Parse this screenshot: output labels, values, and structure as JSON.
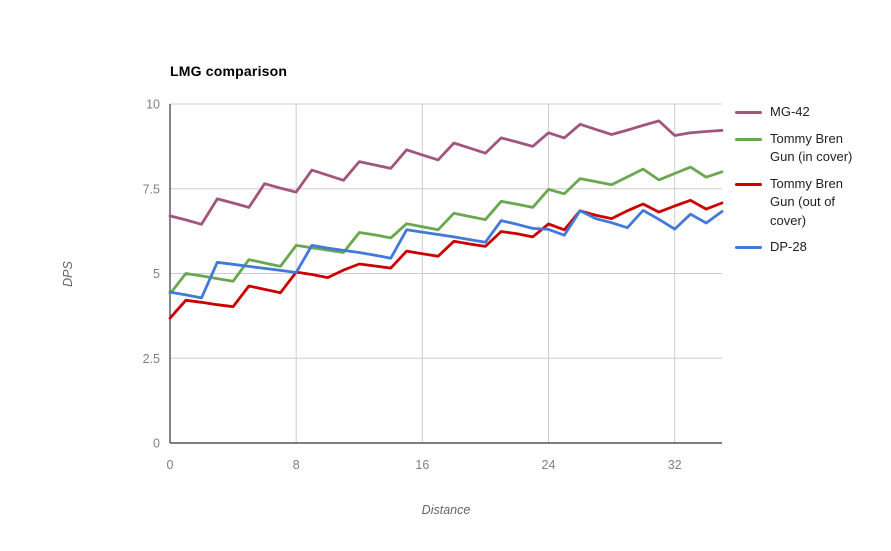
{
  "title": "LMG comparison",
  "chart_data": {
    "type": "line",
    "title": "LMG comparison",
    "xlabel": "Distance",
    "ylabel": "DPS",
    "xlim": [
      0,
      35
    ],
    "ylim": [
      0,
      10
    ],
    "x_ticks": [
      "0",
      "8",
      "16",
      "24",
      "32"
    ],
    "x_tick_values": [
      0,
      8,
      16,
      24,
      32
    ],
    "y_ticks": [
      "0",
      "2.5",
      "5",
      "7.5",
      "10"
    ],
    "y_tick_values": [
      0,
      2.5,
      5,
      7.5,
      10
    ],
    "grid": true,
    "legend_position": "right",
    "x": [
      0,
      1,
      2,
      3,
      4,
      5,
      6,
      7,
      8,
      9,
      10,
      11,
      12,
      13,
      14,
      15,
      16,
      17,
      18,
      19,
      20,
      21,
      22,
      23,
      24,
      25,
      26,
      27,
      28,
      29,
      30,
      31,
      32,
      33,
      34,
      35
    ],
    "series": [
      {
        "name": "MG-42",
        "color": "#a2567e",
        "values": [
          6.7,
          6.58,
          6.45,
          7.2,
          7.08,
          6.95,
          7.65,
          7.52,
          7.4,
          8.05,
          7.9,
          7.75,
          8.3,
          8.2,
          8.1,
          8.65,
          8.5,
          8.35,
          8.85,
          8.7,
          8.55,
          9.0,
          8.88,
          8.75,
          9.15,
          9.0,
          9.4,
          9.25,
          9.1,
          9.23,
          9.37,
          9.5,
          9.07,
          9.15,
          9.19,
          9.22
        ]
      },
      {
        "name": "Tommy Bren Gun (in cover)",
        "color": "#6aa84f",
        "values": [
          4.4,
          5.0,
          4.93,
          4.85,
          4.77,
          5.41,
          5.31,
          5.21,
          5.83,
          5.76,
          5.69,
          5.62,
          6.21,
          6.14,
          6.05,
          6.47,
          6.38,
          6.29,
          6.78,
          6.68,
          6.59,
          7.13,
          7.04,
          6.95,
          7.48,
          7.35,
          7.8,
          7.71,
          7.62,
          7.85,
          8.08,
          7.76,
          7.95,
          8.14,
          7.84,
          8.0
        ]
      },
      {
        "name": "Tommy Bren Gun (out of cover)",
        "color": "#cc0000",
        "values": [
          3.68,
          4.21,
          4.15,
          4.08,
          4.02,
          4.63,
          4.53,
          4.43,
          5.04,
          4.97,
          4.88,
          5.1,
          5.28,
          5.22,
          5.16,
          5.66,
          5.58,
          5.51,
          5.95,
          5.87,
          5.8,
          6.24,
          6.17,
          6.08,
          6.46,
          6.29,
          6.85,
          6.72,
          6.62,
          6.85,
          7.05,
          6.81,
          6.99,
          7.16,
          6.9,
          7.08
        ]
      },
      {
        "name": "DP-28",
        "color": "#4379d8",
        "values": [
          4.45,
          4.37,
          4.28,
          5.33,
          5.27,
          5.21,
          5.15,
          5.09,
          5.03,
          5.83,
          5.75,
          5.68,
          5.62,
          5.54,
          5.45,
          6.29,
          6.22,
          6.15,
          6.08,
          6.0,
          5.92,
          6.56,
          6.45,
          6.33,
          6.3,
          6.13,
          6.85,
          6.62,
          6.5,
          6.35,
          6.86,
          6.6,
          6.31,
          6.75,
          6.49,
          6.83
        ]
      }
    ]
  }
}
